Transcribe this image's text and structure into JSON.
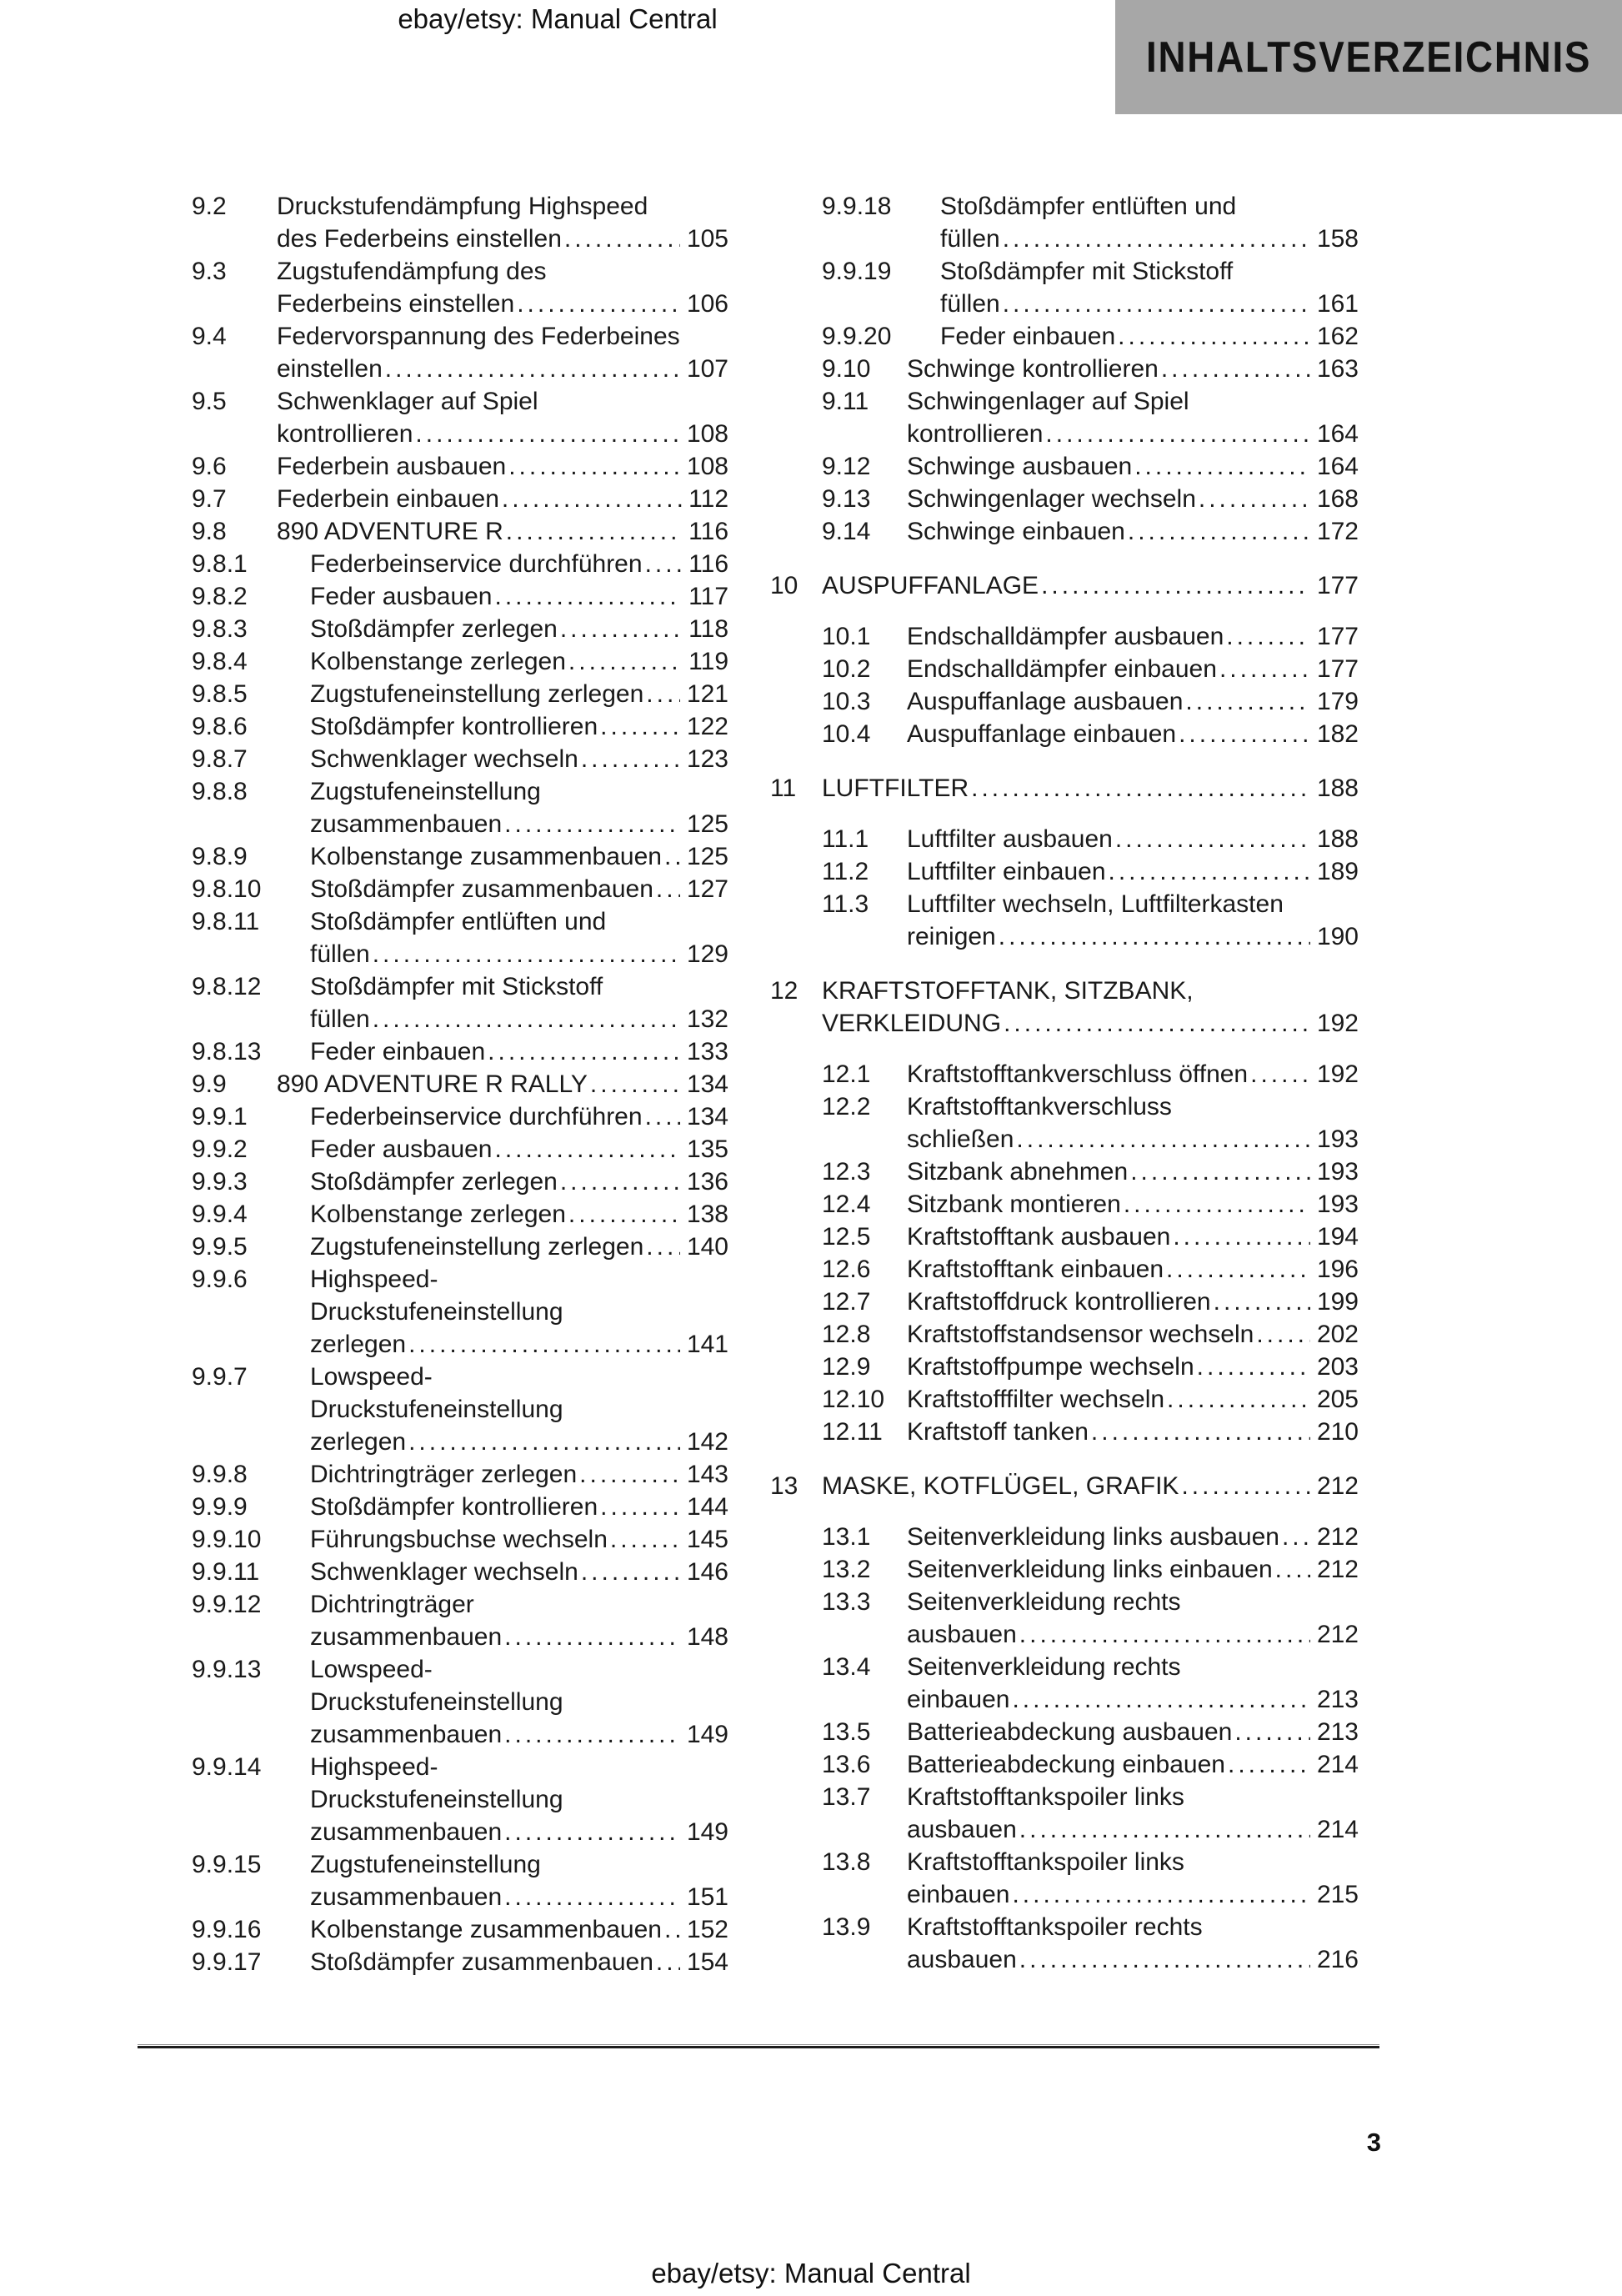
{
  "header": {
    "site_label": "ebay/etsy: Manual Central",
    "page_header": "INHALTSVERZEICHNIS"
  },
  "footer": {
    "site_label": "ebay/etsy: Manual Central",
    "page_number": "3"
  },
  "colors": {
    "header_box_bg": "#a7a7a7",
    "text": "#1a1a1a"
  },
  "toc": {
    "left_column": [
      {
        "num": "9.2",
        "level": 2,
        "lines": [
          "Druckstufendämpfung Highspeed",
          "des Federbeins einstellen"
        ],
        "page": "105"
      },
      {
        "num": "9.3",
        "level": 2,
        "lines": [
          "Zugstufendämpfung des",
          "Federbeins einstellen"
        ],
        "page": "106"
      },
      {
        "num": "9.4",
        "level": 2,
        "lines": [
          "Federvorspannung des Federbeines",
          "einstellen"
        ],
        "page": "107"
      },
      {
        "num": "9.5",
        "level": 2,
        "lines": [
          "Schwenklager auf Spiel",
          "kontrollieren"
        ],
        "page": "108"
      },
      {
        "num": "9.6",
        "level": 2,
        "lines": [
          "Federbein ausbauen"
        ],
        "page": "108"
      },
      {
        "num": "9.7",
        "level": 2,
        "lines": [
          "Federbein einbauen"
        ],
        "page": "112"
      },
      {
        "num": "9.8",
        "level": 2,
        "lines": [
          "890 ADVENTURE R"
        ],
        "page": "116"
      },
      {
        "num": "9.8.1",
        "level": 3,
        "lines": [
          "Federbeinservice durchführen"
        ],
        "page": "116"
      },
      {
        "num": "9.8.2",
        "level": 3,
        "lines": [
          "Feder ausbauen"
        ],
        "page": "117"
      },
      {
        "num": "9.8.3",
        "level": 3,
        "lines": [
          "Stoßdämpfer zerlegen"
        ],
        "page": "118"
      },
      {
        "num": "9.8.4",
        "level": 3,
        "lines": [
          "Kolbenstange zerlegen"
        ],
        "page": "119"
      },
      {
        "num": "9.8.5",
        "level": 3,
        "lines": [
          "Zugstufeneinstellung zerlegen"
        ],
        "page": "121"
      },
      {
        "num": "9.8.6",
        "level": 3,
        "lines": [
          "Stoßdämpfer kontrollieren"
        ],
        "page": "122"
      },
      {
        "num": "9.8.7",
        "level": 3,
        "lines": [
          "Schwenklager wechseln"
        ],
        "page": "123"
      },
      {
        "num": "9.8.8",
        "level": 3,
        "lines": [
          "Zugstufeneinstellung",
          "zusammenbauen"
        ],
        "page": "125"
      },
      {
        "num": "9.8.9",
        "level": 3,
        "lines": [
          "Kolbenstange zusammenbauen"
        ],
        "page": "125"
      },
      {
        "num": "9.8.10",
        "level": 3,
        "lines": [
          "Stoßdämpfer zusammenbauen"
        ],
        "page": "127"
      },
      {
        "num": "9.8.11",
        "level": 3,
        "lines": [
          "Stoßdämpfer entlüften und",
          "füllen"
        ],
        "page": "129"
      },
      {
        "num": "9.8.12",
        "level": 3,
        "lines": [
          "Stoßdämpfer mit Stickstoff",
          "füllen"
        ],
        "page": "132"
      },
      {
        "num": "9.8.13",
        "level": 3,
        "lines": [
          "Feder einbauen"
        ],
        "page": "133"
      },
      {
        "num": "9.9",
        "level": 2,
        "lines": [
          "890 ADVENTURE R RALLY"
        ],
        "page": "134"
      },
      {
        "num": "9.9.1",
        "level": 3,
        "lines": [
          "Federbeinservice durchführen"
        ],
        "page": "134"
      },
      {
        "num": "9.9.2",
        "level": 3,
        "lines": [
          "Feder ausbauen"
        ],
        "page": "135"
      },
      {
        "num": "9.9.3",
        "level": 3,
        "lines": [
          "Stoßdämpfer zerlegen"
        ],
        "page": "136"
      },
      {
        "num": "9.9.4",
        "level": 3,
        "lines": [
          "Kolbenstange zerlegen"
        ],
        "page": "138"
      },
      {
        "num": "9.9.5",
        "level": 3,
        "lines": [
          "Zugstufeneinstellung zerlegen"
        ],
        "page": "140"
      },
      {
        "num": "9.9.6",
        "level": 3,
        "lines": [
          "Highspeed-",
          "Druckstufeneinstellung",
          "zerlegen"
        ],
        "page": "141"
      },
      {
        "num": "9.9.7",
        "level": 3,
        "lines": [
          "Lowspeed-",
          "Druckstufeneinstellung",
          "zerlegen"
        ],
        "page": "142"
      },
      {
        "num": "9.9.8",
        "level": 3,
        "lines": [
          "Dichtringträger zerlegen"
        ],
        "page": "143"
      },
      {
        "num": "9.9.9",
        "level": 3,
        "lines": [
          "Stoßdämpfer kontrollieren"
        ],
        "page": "144"
      },
      {
        "num": "9.9.10",
        "level": 3,
        "lines": [
          "Führungsbuchse wechseln"
        ],
        "page": "145"
      },
      {
        "num": "9.9.11",
        "level": 3,
        "lines": [
          "Schwenklager wechseln"
        ],
        "page": "146"
      },
      {
        "num": "9.9.12",
        "level": 3,
        "lines": [
          "Dichtringträger",
          "zusammenbauen"
        ],
        "page": "148"
      },
      {
        "num": "9.9.13",
        "level": 3,
        "lines": [
          "Lowspeed-",
          "Druckstufeneinstellung",
          "zusammenbauen"
        ],
        "page": "149"
      },
      {
        "num": "9.9.14",
        "level": 3,
        "lines": [
          "Highspeed-",
          "Druckstufeneinstellung",
          "zusammenbauen"
        ],
        "page": "149"
      },
      {
        "num": "9.9.15",
        "level": 3,
        "lines": [
          "Zugstufeneinstellung",
          "zusammenbauen"
        ],
        "page": "151"
      },
      {
        "num": "9.9.16",
        "level": 3,
        "lines": [
          "Kolbenstange zusammenbauen"
        ],
        "page": "152"
      },
      {
        "num": "9.9.17",
        "level": 3,
        "lines": [
          "Stoßdämpfer zusammenbauen"
        ],
        "page": "154"
      }
    ],
    "right_column": [
      {
        "num": "9.9.18",
        "level": 3,
        "lines": [
          "Stoßdämpfer entlüften und",
          "füllen"
        ],
        "page": "158"
      },
      {
        "num": "9.9.19",
        "level": 3,
        "lines": [
          "Stoßdämpfer mit Stickstoff",
          "füllen"
        ],
        "page": "161"
      },
      {
        "num": "9.9.20",
        "level": 3,
        "lines": [
          "Feder einbauen"
        ],
        "page": "162"
      },
      {
        "num": "9.10",
        "level": 2,
        "lines": [
          "Schwinge kontrollieren"
        ],
        "page": "163"
      },
      {
        "num": "9.11",
        "level": 2,
        "lines": [
          "Schwingenlager auf Spiel",
          "kontrollieren"
        ],
        "page": "164"
      },
      {
        "num": "9.12",
        "level": 2,
        "lines": [
          "Schwinge ausbauen"
        ],
        "page": "164"
      },
      {
        "num": "9.13",
        "level": 2,
        "lines": [
          "Schwingenlager wechseln"
        ],
        "page": "168"
      },
      {
        "num": "9.14",
        "level": 2,
        "lines": [
          "Schwinge einbauen"
        ],
        "page": "172"
      },
      {
        "num": "10",
        "level": 1,
        "lines": [
          "AUSPUFFANLAGE"
        ],
        "page": "177"
      },
      {
        "num": "10.1",
        "level": 2,
        "lines": [
          "Endschalldämpfer ausbauen"
        ],
        "page": "177"
      },
      {
        "num": "10.2",
        "level": 2,
        "lines": [
          "Endschalldämpfer einbauen"
        ],
        "page": "177"
      },
      {
        "num": "10.3",
        "level": 2,
        "lines": [
          "Auspuffanlage ausbauen"
        ],
        "page": "179"
      },
      {
        "num": "10.4",
        "level": 2,
        "lines": [
          "Auspuffanlage einbauen"
        ],
        "page": "182"
      },
      {
        "num": "11",
        "level": 1,
        "lines": [
          "LUFTFILTER"
        ],
        "page": "188"
      },
      {
        "num": "11.1",
        "level": 2,
        "lines": [
          "Luftfilter ausbauen"
        ],
        "page": "188"
      },
      {
        "num": "11.2",
        "level": 2,
        "lines": [
          "Luftfilter einbauen"
        ],
        "page": "189"
      },
      {
        "num": "11.3",
        "level": 2,
        "lines": [
          "Luftfilter wechseln, Luftfilterkasten",
          "reinigen"
        ],
        "page": "190"
      },
      {
        "num": "12",
        "level": 1,
        "lines": [
          "KRAFTSTOFFTANK, SITZBANK,",
          "VERKLEIDUNG"
        ],
        "page": "192"
      },
      {
        "num": "12.1",
        "level": 2,
        "lines": [
          "Kraftstofftankverschluss öffnen"
        ],
        "page": "192"
      },
      {
        "num": "12.2",
        "level": 2,
        "lines": [
          "Kraftstofftankverschluss",
          "schließen"
        ],
        "page": "193"
      },
      {
        "num": "12.3",
        "level": 2,
        "lines": [
          "Sitzbank abnehmen"
        ],
        "page": "193"
      },
      {
        "num": "12.4",
        "level": 2,
        "lines": [
          "Sitzbank montieren"
        ],
        "page": "193"
      },
      {
        "num": "12.5",
        "level": 2,
        "lines": [
          "Kraftstofftank ausbauen"
        ],
        "page": "194"
      },
      {
        "num": "12.6",
        "level": 2,
        "lines": [
          "Kraftstofftank einbauen"
        ],
        "page": "196"
      },
      {
        "num": "12.7",
        "level": 2,
        "lines": [
          "Kraftstoffdruck kontrollieren"
        ],
        "page": "199"
      },
      {
        "num": "12.8",
        "level": 2,
        "lines": [
          "Kraftstoffstandsensor wechseln"
        ],
        "page": "202"
      },
      {
        "num": "12.9",
        "level": 2,
        "lines": [
          "Kraftstoffpumpe wechseln"
        ],
        "page": "203"
      },
      {
        "num": "12.10",
        "level": 2,
        "lines": [
          "Kraftstofffilter wechseln"
        ],
        "page": "205"
      },
      {
        "num": "12.11",
        "level": 2,
        "lines": [
          "Kraftstoff tanken"
        ],
        "page": "210"
      },
      {
        "num": "13",
        "level": 1,
        "lines": [
          "MASKE, KOTFLÜGEL, GRAFIK"
        ],
        "page": "212"
      },
      {
        "num": "13.1",
        "level": 2,
        "lines": [
          "Seitenverkleidung links ausbauen"
        ],
        "page": "212"
      },
      {
        "num": "13.2",
        "level": 2,
        "lines": [
          "Seitenverkleidung links einbauen"
        ],
        "page": "212"
      },
      {
        "num": "13.3",
        "level": 2,
        "lines": [
          "Seitenverkleidung rechts",
          "ausbauen"
        ],
        "page": "212"
      },
      {
        "num": "13.4",
        "level": 2,
        "lines": [
          "Seitenverkleidung rechts",
          "einbauen"
        ],
        "page": "213"
      },
      {
        "num": "13.5",
        "level": 2,
        "lines": [
          "Batterieabdeckung ausbauen"
        ],
        "page": "213"
      },
      {
        "num": "13.6",
        "level": 2,
        "lines": [
          "Batterieabdeckung einbauen"
        ],
        "page": "214"
      },
      {
        "num": "13.7",
        "level": 2,
        "lines": [
          "Kraftstofftankspoiler links",
          "ausbauen"
        ],
        "page": "214"
      },
      {
        "num": "13.8",
        "level": 2,
        "lines": [
          "Kraftstofftankspoiler links",
          "einbauen"
        ],
        "page": "215"
      },
      {
        "num": "13.9",
        "level": 2,
        "lines": [
          "Kraftstofftankspoiler rechts",
          "ausbauen"
        ],
        "page": "216"
      }
    ]
  }
}
